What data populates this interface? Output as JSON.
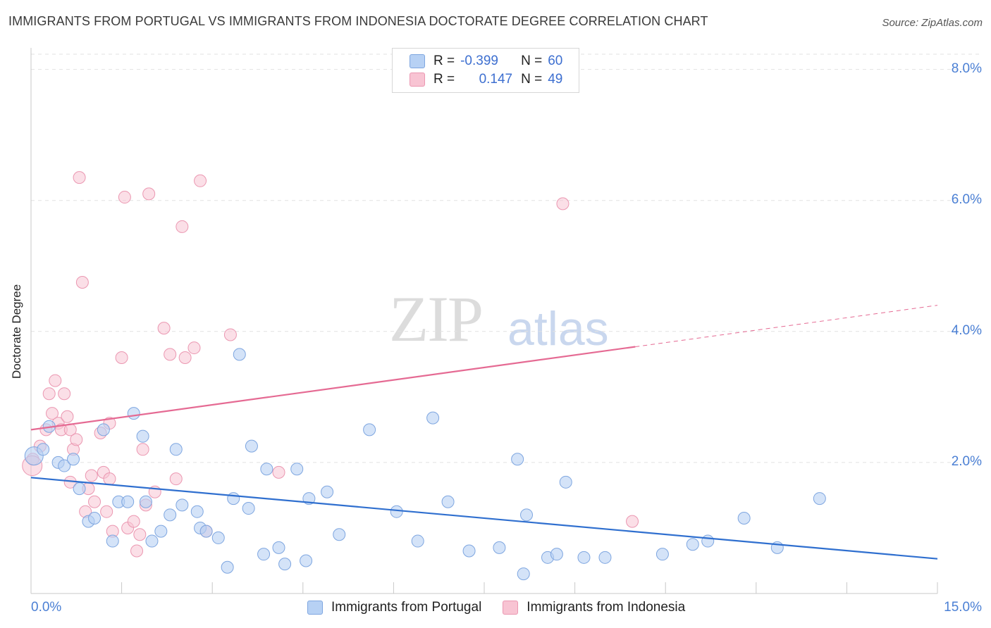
{
  "title": "IMMIGRANTS FROM PORTUGAL VS IMMIGRANTS FROM INDONESIA DOCTORATE DEGREE CORRELATION CHART",
  "source": "Source: ZipAtlas.com",
  "watermark_zip": "ZIP",
  "watermark_atlas": "atlas",
  "legend_top": {
    "r_label": "R =",
    "n_label": "N =",
    "portugal_r": "-0.399",
    "portugal_n": "60",
    "indonesia_r": "0.147",
    "indonesia_n": "49"
  },
  "colors": {
    "portugal_fill": "#b7d1f4",
    "portugal_stroke": "#7ea6e0",
    "portugal_line": "#2f6fcf",
    "indonesia_fill": "#f8c4d3",
    "indonesia_stroke": "#eb97b1",
    "indonesia_line": "#e56a93",
    "tick_text": "#4a7fd4",
    "grid": "#e2e2e2"
  },
  "chart_data": {
    "type": "scatter",
    "ylabel": "Doctorate Degree",
    "xlim": [
      0,
      15
    ],
    "ylim": [
      0,
      8.2
    ],
    "x_ticks_labels": [
      "0.0%",
      "15.0%"
    ],
    "y_ticks": [
      2,
      4,
      6,
      8
    ],
    "y_tick_labels": [
      "2.0%",
      "4.0%",
      "6.0%",
      "8.0%"
    ],
    "series": [
      {
        "name": "Immigrants from Portugal",
        "trend": {
          "x0": 0,
          "y0": 1.77,
          "x1": 15,
          "y1": 0.53,
          "solid_to": 15
        },
        "points": [
          [
            0.05,
            2.1
          ],
          [
            0.2,
            2.2
          ],
          [
            0.3,
            2.55
          ],
          [
            0.45,
            2.0
          ],
          [
            0.55,
            1.95
          ],
          [
            0.7,
            2.05
          ],
          [
            0.8,
            1.6
          ],
          [
            0.95,
            1.1
          ],
          [
            1.05,
            1.15
          ],
          [
            1.2,
            2.5
          ],
          [
            1.35,
            0.8
          ],
          [
            1.45,
            1.4
          ],
          [
            1.6,
            1.4
          ],
          [
            1.7,
            2.75
          ],
          [
            1.85,
            2.4
          ],
          [
            1.9,
            1.4
          ],
          [
            2.0,
            0.8
          ],
          [
            2.15,
            0.95
          ],
          [
            2.3,
            1.2
          ],
          [
            2.4,
            2.2
          ],
          [
            2.5,
            1.35
          ],
          [
            2.75,
            1.25
          ],
          [
            2.8,
            1.0
          ],
          [
            2.9,
            0.95
          ],
          [
            3.1,
            0.85
          ],
          [
            3.25,
            0.4
          ],
          [
            3.35,
            1.45
          ],
          [
            3.45,
            3.65
          ],
          [
            3.6,
            1.3
          ],
          [
            3.65,
            2.25
          ],
          [
            3.85,
            0.6
          ],
          [
            3.9,
            1.9
          ],
          [
            4.1,
            0.7
          ],
          [
            4.2,
            0.45
          ],
          [
            4.4,
            1.9
          ],
          [
            4.55,
            0.5
          ],
          [
            4.6,
            1.45
          ],
          [
            4.9,
            1.55
          ],
          [
            5.1,
            0.9
          ],
          [
            5.6,
            2.5
          ],
          [
            6.05,
            1.25
          ],
          [
            6.4,
            0.8
          ],
          [
            6.65,
            2.68
          ],
          [
            6.9,
            1.4
          ],
          [
            7.25,
            0.65
          ],
          [
            7.75,
            0.7
          ],
          [
            8.05,
            2.05
          ],
          [
            8.15,
            0.3
          ],
          [
            8.2,
            1.2
          ],
          [
            8.55,
            0.55
          ],
          [
            8.7,
            0.6
          ],
          [
            8.85,
            1.7
          ],
          [
            9.15,
            0.55
          ],
          [
            9.5,
            0.55
          ],
          [
            10.45,
            0.6
          ],
          [
            10.95,
            0.75
          ],
          [
            11.2,
            0.8
          ],
          [
            11.8,
            1.15
          ],
          [
            12.35,
            0.7
          ],
          [
            13.05,
            1.45
          ]
        ]
      },
      {
        "name": "Immigrants from Indonesia",
        "trend": {
          "x0": 0,
          "y0": 2.5,
          "x1": 15,
          "y1": 4.4,
          "solid_to": 10
        },
        "points": [
          [
            0.03,
            2.05
          ],
          [
            0.15,
            2.25
          ],
          [
            0.25,
            2.5
          ],
          [
            0.3,
            3.05
          ],
          [
            0.35,
            2.75
          ],
          [
            0.4,
            3.25
          ],
          [
            0.45,
            2.6
          ],
          [
            0.5,
            2.5
          ],
          [
            0.55,
            3.05
          ],
          [
            0.6,
            2.7
          ],
          [
            0.65,
            2.5
          ],
          [
            0.65,
            1.7
          ],
          [
            0.7,
            2.2
          ],
          [
            0.75,
            2.35
          ],
          [
            0.8,
            6.35
          ],
          [
            0.85,
            4.75
          ],
          [
            0.9,
            1.25
          ],
          [
            0.95,
            1.6
          ],
          [
            1.0,
            1.8
          ],
          [
            1.05,
            1.4
          ],
          [
            1.15,
            2.45
          ],
          [
            1.2,
            1.85
          ],
          [
            1.25,
            1.25
          ],
          [
            1.3,
            1.75
          ],
          [
            1.3,
            2.6
          ],
          [
            1.35,
            0.95
          ],
          [
            1.5,
            3.6
          ],
          [
            1.55,
            6.05
          ],
          [
            1.6,
            1.0
          ],
          [
            1.7,
            1.1
          ],
          [
            1.75,
            0.65
          ],
          [
            1.8,
            0.9
          ],
          [
            1.85,
            2.2
          ],
          [
            1.9,
            1.35
          ],
          [
            1.95,
            6.1
          ],
          [
            2.05,
            1.55
          ],
          [
            2.2,
            4.05
          ],
          [
            2.3,
            3.65
          ],
          [
            2.4,
            1.75
          ],
          [
            2.5,
            5.6
          ],
          [
            2.55,
            3.6
          ],
          [
            2.7,
            3.75
          ],
          [
            2.8,
            6.3
          ],
          [
            2.9,
            0.95
          ],
          [
            3.3,
            3.95
          ],
          [
            4.1,
            1.85
          ],
          [
            8.8,
            5.95
          ],
          [
            9.95,
            1.1
          ],
          [
            0.02,
            1.95
          ]
        ]
      }
    ]
  },
  "bottom_legend": {
    "portugal": "Immigrants from Portugal",
    "indonesia": "Immigrants from Indonesia"
  }
}
